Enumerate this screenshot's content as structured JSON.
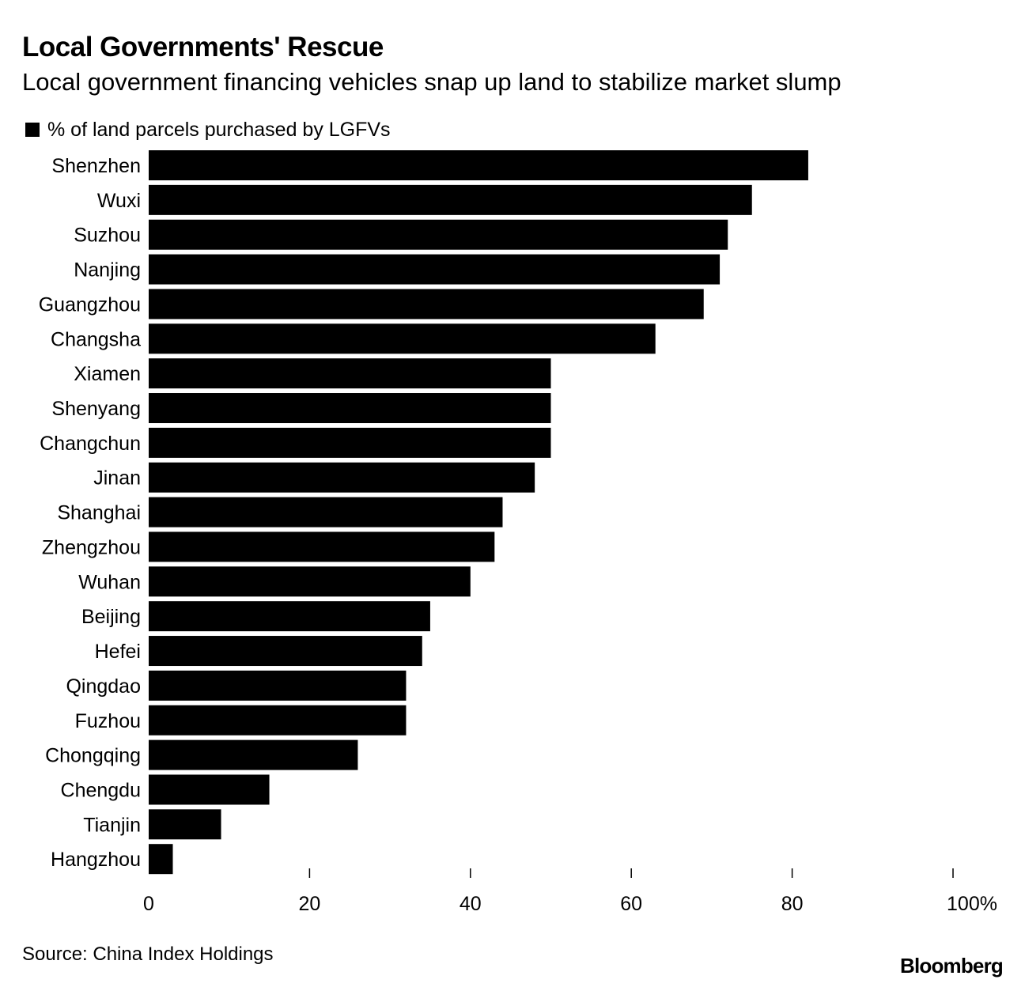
{
  "chart_data": {
    "type": "bar",
    "orientation": "horizontal",
    "title": "Local Governments' Rescue",
    "subtitle": "Local government financing vehicles snap up land to stabilize market slump",
    "legend_position": "top-left",
    "series": [
      {
        "name": "% of land parcels purchased by LGFVs",
        "color": "#000000",
        "values": [
          82,
          75,
          72,
          71,
          69,
          63,
          50,
          50,
          50,
          48,
          44,
          43,
          40,
          35,
          34,
          32,
          32,
          26,
          15,
          9,
          3
        ]
      }
    ],
    "categories": [
      "Shenzhen",
      "Wuxi",
      "Suzhou",
      "Nanjing",
      "Guangzhou",
      "Changsha",
      "Xiamen",
      "Shenyang",
      "Changchun",
      "Jinan",
      "Shanghai",
      "Zhengzhou",
      "Wuhan",
      "Beijing",
      "Hefei",
      "Qingdao",
      "Fuzhou",
      "Chongqing",
      "Chengdu",
      "Tianjin",
      "Hangzhou"
    ],
    "xlim": [
      0,
      100
    ],
    "x_ticks": [
      0,
      20,
      40,
      60,
      80,
      100
    ],
    "x_tick_labels": [
      "0",
      "20",
      "40",
      "60",
      "80",
      "100%"
    ],
    "grid": false
  },
  "footer": {
    "source": "Source: China Index Holdings",
    "logo": "Bloomberg"
  }
}
